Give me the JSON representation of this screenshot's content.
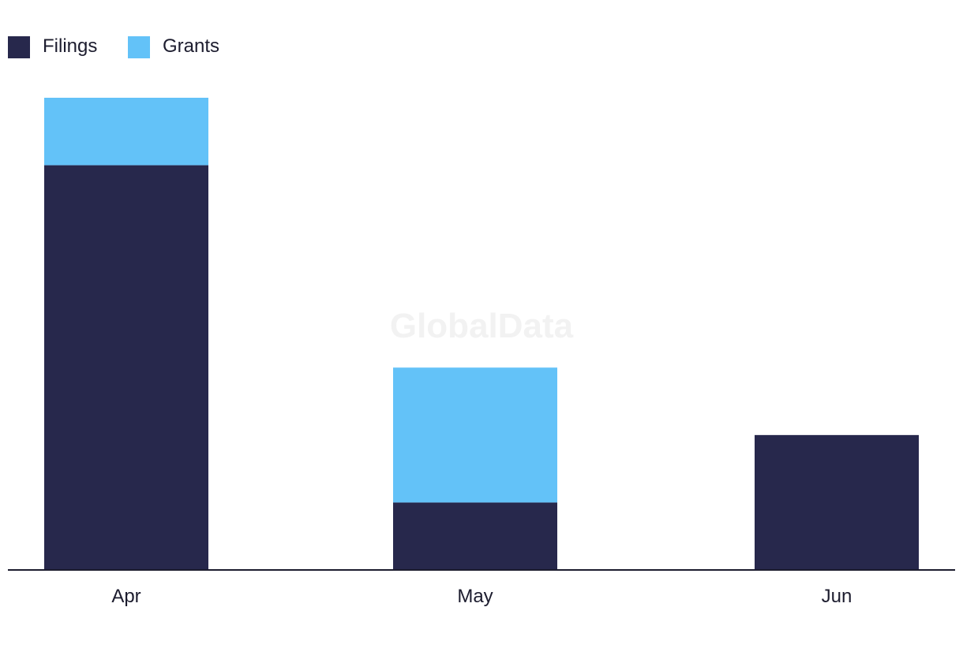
{
  "chart_data": {
    "type": "bar",
    "stacked": true,
    "categories": [
      "Apr",
      "May",
      "Jun"
    ],
    "series": [
      {
        "name": "Filings",
        "color": "#27284c",
        "values": [
          6,
          1,
          2
        ]
      },
      {
        "name": "Grants",
        "color": "#63c2f8",
        "values": [
          1,
          2,
          0
        ]
      }
    ],
    "ylim": [
      0,
      7
    ],
    "grid": false,
    "legend_position": "top-left",
    "watermark": "GlobalData"
  }
}
